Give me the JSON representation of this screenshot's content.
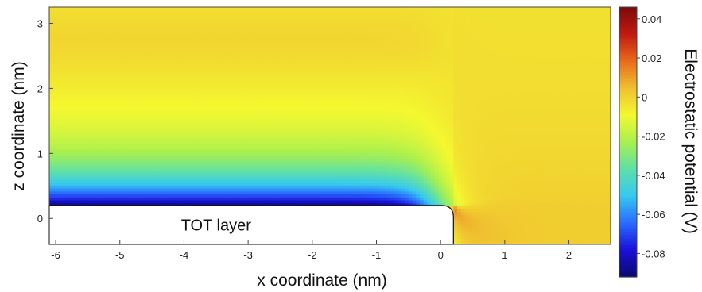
{
  "chart_data": {
    "type": "heatmap",
    "xlabel": "x coordinate (nm)",
    "ylabel": "z coordinate (nm)",
    "xlim": [
      -6.1,
      2.65
    ],
    "ylim": [
      -0.4,
      3.25
    ],
    "x_ticks": [
      {
        "value": -6,
        "label": "-6"
      },
      {
        "value": -5,
        "label": "-5"
      },
      {
        "value": -4,
        "label": "-4"
      },
      {
        "value": -3,
        "label": "-3"
      },
      {
        "value": -2,
        "label": "-2"
      },
      {
        "value": -1,
        "label": "-1"
      },
      {
        "value": 0,
        "label": "0"
      },
      {
        "value": 1,
        "label": "1"
      },
      {
        "value": 2,
        "label": "2"
      }
    ],
    "y_ticks": [
      {
        "value": 0,
        "label": "0"
      },
      {
        "value": 1,
        "label": "1"
      },
      {
        "value": 2,
        "label": "2"
      },
      {
        "value": 3,
        "label": "3"
      }
    ],
    "colorbar": {
      "label": "Electrostatic potential (V)",
      "range": [
        -0.092,
        0.046
      ],
      "ticks": [
        {
          "value": 0.04,
          "label": "0.04"
        },
        {
          "value": 0.02,
          "label": "0.02"
        },
        {
          "value": 0,
          "label": "0"
        },
        {
          "value": -0.02,
          "label": "-0.02"
        },
        {
          "value": -0.04,
          "label": "-0.04"
        },
        {
          "value": -0.06,
          "label": "-0.06"
        },
        {
          "value": -0.08,
          "label": "-0.08"
        }
      ],
      "colormap": [
        "#0a0a6e",
        "#1a10d8",
        "#2a6cff",
        "#36c8f0",
        "#5ee0a8",
        "#a8f050",
        "#f4f830",
        "#f0c030",
        "#e86a1c",
        "#c01a10",
        "#7a0a0a"
      ]
    },
    "annotations": [
      {
        "text": "TOT layer",
        "x": -3.5,
        "y": -0.1
      }
    ],
    "field_summary": {
      "far_field_value": -0.004,
      "surface_value": -0.09,
      "corner_value": 0.03,
      "surface_z": 0.2,
      "layer_edge_x": 0.2
    }
  }
}
